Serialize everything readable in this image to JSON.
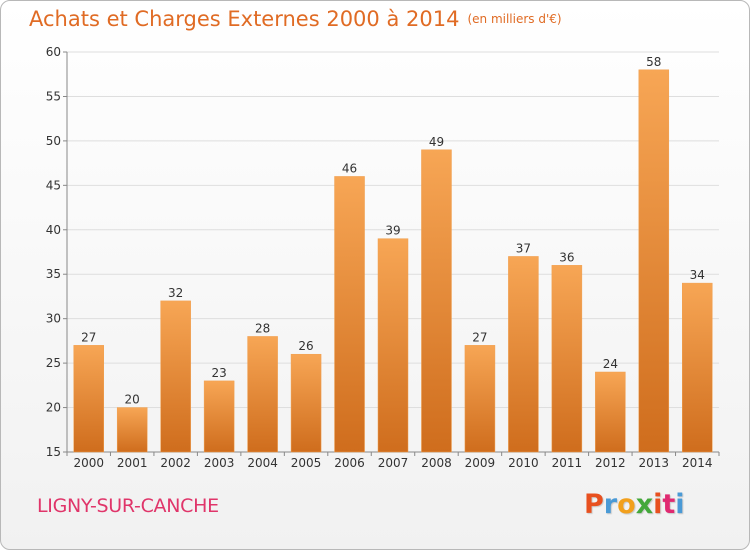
{
  "header": {
    "title": "Achats et Charges Externes 2000 à 2014",
    "unit": "(en milliers d'€)"
  },
  "footer": {
    "commune": "LIGNY-SUR-CANCHE",
    "logo": "Proxiti",
    "logo_colors": [
      "#e8501f",
      "#4a9ad6",
      "#f2a01c",
      "#43a83a",
      "#e8501f",
      "#e02a71",
      "#4a9ad6"
    ]
  },
  "chart_data": {
    "type": "bar",
    "title": "Achats et Charges Externes 2000 à 2014",
    "subtitle": "(en milliers d'€)",
    "xlabel": "",
    "ylabel": "",
    "categories": [
      "2000",
      "2001",
      "2002",
      "2003",
      "2004",
      "2005",
      "2006",
      "2007",
      "2008",
      "2009",
      "2010",
      "2011",
      "2012",
      "2013",
      "2014"
    ],
    "values": [
      27,
      20,
      32,
      23,
      28,
      26,
      46,
      39,
      49,
      27,
      37,
      36,
      24,
      58,
      34
    ],
    "ylim": [
      15,
      60
    ],
    "yticks": [
      15,
      20,
      25,
      30,
      35,
      40,
      45,
      50,
      55,
      60
    ],
    "grid": true,
    "legend": "none",
    "bar_color_top": "#f7a655",
    "bar_color_bottom": "#cf6d1d"
  }
}
